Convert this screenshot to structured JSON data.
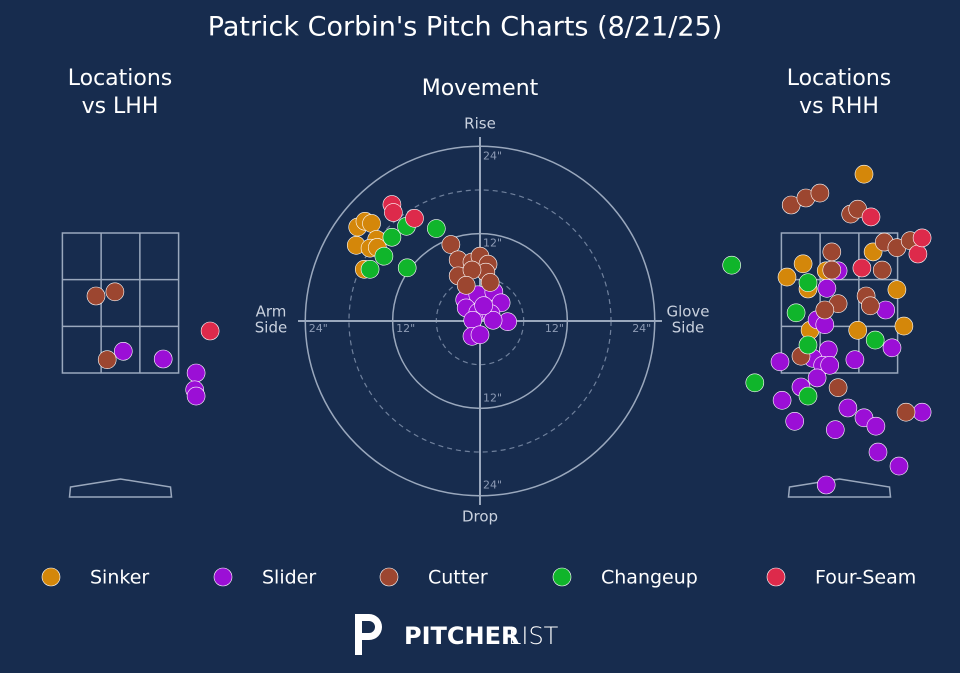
{
  "title": "Patrick Corbin's Pitch Charts (8/21/25)",
  "brand": {
    "bold": "PITCHER",
    "light": "LIST"
  },
  "chart_data": [
    {
      "type": "scatter",
      "title": [
        "Locations",
        "vs LHH"
      ],
      "xlim": [
        -1.7,
        1.7
      ],
      "ylim": [
        -0.5,
        5
      ],
      "strike_zone": true,
      "series": [
        {
          "name": "Sinker",
          "color": "#d4870a",
          "x": [],
          "y": []
        },
        {
          "name": "Slider",
          "color": "#9b0fd6",
          "x": [
            0.04,
            0.61,
            1.08,
            1.06,
            1.08
          ],
          "y": [
            1.81,
            1.7,
            1.5,
            1.26,
            1.17
          ]
        },
        {
          "name": "Cutter",
          "color": "#9c4630",
          "x": [
            -0.35,
            -0.08,
            -0.19
          ],
          "y": [
            2.6,
            2.66,
            1.69
          ]
        },
        {
          "name": "Changeup",
          "color": "#10b52b",
          "x": [],
          "y": []
        },
        {
          "name": "Four-Seam",
          "color": "#dd2a4b",
          "x": [
            1.28
          ],
          "y": [
            2.1
          ]
        }
      ]
    },
    {
      "type": "scatter",
      "title": [
        "Movement"
      ],
      "xlim": [
        -25,
        25
      ],
      "ylim": [
        -25,
        25
      ],
      "rings": true,
      "y_axis_labels": {
        "top": "Rise",
        "bottom": "Drop"
      },
      "x_axis_labels": {
        "left": [
          "Arm",
          "Side"
        ],
        "right": [
          "Glove",
          "Side"
        ]
      },
      "xticks": [
        {
          "value": -24,
          "label": "24\""
        },
        {
          "value": -12,
          "label": "12\""
        },
        {
          "value": 12,
          "label": "12\""
        },
        {
          "value": 24,
          "label": "24\""
        }
      ],
      "yticks": [
        {
          "value": -24,
          "label": "24\""
        },
        {
          "value": -12,
          "label": "12\""
        },
        {
          "value": 12,
          "label": "12\""
        },
        {
          "value": 24,
          "label": "24\""
        }
      ],
      "series": [
        {
          "name": "Sinker",
          "color": "#d4870a",
          "x": [
            -16.8,
            -15.8,
            -14.9,
            -17.0,
            -14.2,
            -15.1,
            -15.9,
            -14.1
          ],
          "y": [
            12.9,
            13.7,
            13.4,
            10.4,
            11.2,
            10.0,
            7.1,
            10.1
          ]
        },
        {
          "name": "Slider",
          "color": "#9b0fd6",
          "x": [
            -2.1,
            -0.3,
            1.9,
            2.9,
            -1.9,
            -0.3,
            1.5,
            3.8,
            -1.0,
            1.8,
            -1.1,
            0,
            0.5
          ],
          "y": [
            2.9,
            3.6,
            4.0,
            2.5,
            1.8,
            1.2,
            1.0,
            -0.1,
            0.1,
            0.1,
            -2.1,
            -1.9,
            2.1
          ]
        },
        {
          "name": "Cutter",
          "color": "#9c4630",
          "x": [
            -4.0,
            -3.0,
            -1.1,
            0,
            1.1,
            0.8,
            -3.0,
            -1.1,
            -1.9,
            1.4
          ],
          "y": [
            10.5,
            8.4,
            8.1,
            8.9,
            7.8,
            6.7,
            6.2,
            7.0,
            4.9,
            5.3
          ]
        },
        {
          "name": "Changeup",
          "color": "#10b52b",
          "x": [
            -10.1,
            -12.1,
            -13.2,
            -15.1,
            -10.0,
            -6.0
          ],
          "y": [
            13.0,
            11.5,
            8.9,
            7.1,
            7.3,
            12.7
          ]
        },
        {
          "name": "Four-Seam",
          "color": "#dd2a4b",
          "x": [
            -12.1,
            -11.9,
            -9.0
          ],
          "y": [
            16.0,
            14.9,
            14.1
          ]
        }
      ]
    },
    {
      "type": "scatter",
      "title": [
        "Locations",
        "vs RHH"
      ],
      "xlim": [
        -1.7,
        1.7
      ],
      "ylim": [
        -0.5,
        5
      ],
      "strike_zone": true,
      "series": [
        {
          "name": "Sinker",
          "color": "#d4870a",
          "x": [
            0.35,
            -0.52,
            -0.75,
            -0.45,
            0.48,
            -0.19,
            0.82,
            -0.42,
            0.26,
            0.92
          ],
          "y": [
            4.34,
            3.06,
            2.87,
            2.7,
            3.23,
            2.96,
            2.69,
            2.11,
            2.11,
            2.17
          ]
        },
        {
          "name": "Slider",
          "color": "#9b0fd6",
          "x": [
            -0.02,
            -0.18,
            -0.32,
            -0.21,
            -0.16,
            -0.38,
            -0.24,
            -0.14,
            0.22,
            -0.85,
            -0.55,
            -0.32,
            0.75,
            -0.82,
            -0.64,
            -0.06,
            0.12,
            0.35,
            0.52,
            0.55,
            0.85,
            1.18,
            -0.19,
            0.66
          ],
          "y": [
            2.96,
            2.71,
            2.26,
            2.19,
            1.83,
            1.71,
            1.61,
            1.61,
            1.69,
            1.66,
            1.3,
            1.43,
            1.86,
            1.11,
            0.81,
            0.69,
            1.0,
            0.86,
            0.74,
            0.37,
            0.17,
            0.94,
            -0.1,
            2.4
          ]
        },
        {
          "name": "Cutter",
          "color": "#9c4630",
          "x": [
            -0.69,
            -0.48,
            -0.28,
            0.16,
            0.26,
            -0.11,
            -0.11,
            0.64,
            0.82,
            1.01,
            0.61,
            0.38,
            -0.02,
            -0.21,
            0.44,
            -0.55,
            -0.02,
            0.95
          ],
          "y": [
            3.9,
            4.0,
            4.07,
            3.77,
            3.84,
            3.23,
            2.97,
            3.37,
            3.29,
            3.39,
            2.97,
            2.6,
            2.49,
            2.4,
            2.46,
            1.74,
            1.29,
            0.94
          ]
        },
        {
          "name": "Changeup",
          "color": "#10b52b",
          "x": [
            -1.54,
            -0.45,
            -0.62,
            -0.45,
            0.51,
            -1.21,
            -0.45
          ],
          "y": [
            3.04,
            2.79,
            2.36,
            1.9,
            1.97,
            1.36,
            1.17
          ]
        },
        {
          "name": "Four-Seam",
          "color": "#dd2a4b",
          "x": [
            0.45,
            0.32,
            1.12,
            1.18
          ],
          "y": [
            3.73,
            3.0,
            3.2,
            3.43
          ]
        }
      ]
    }
  ]
}
